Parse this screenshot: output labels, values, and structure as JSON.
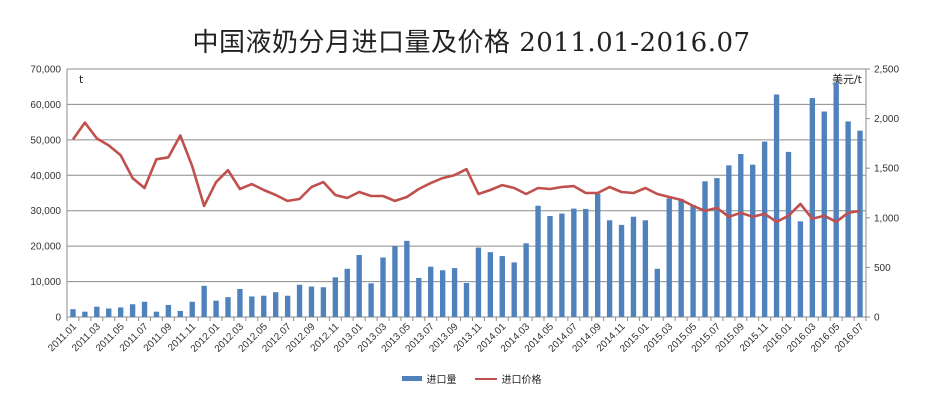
{
  "chart_data": {
    "type": "bar",
    "title": "中国液奶分月进口量及价格 2011.01-2016.07",
    "left_axis": {
      "label": "t",
      "ylim": [
        0,
        70000
      ],
      "ticks": [
        "0",
        "10,000",
        "20,000",
        "30,000",
        "40,000",
        "50,000",
        "60,000",
        "70,000"
      ]
    },
    "right_axis": {
      "label": "美元/t",
      "ylim": [
        0,
        2500
      ],
      "ticks": [
        "0",
        "500",
        "1,000",
        "1,500",
        "2,000",
        "2,500"
      ]
    },
    "categories": [
      "2011.01",
      "2011.02",
      "2011.03",
      "2011.04",
      "2011.05",
      "2011.06",
      "2011.07",
      "2011.08",
      "2011.09",
      "2011.10",
      "2011.11",
      "2011.12",
      "2012.01",
      "2012.02",
      "2012.03",
      "2012.04",
      "2012.05",
      "2012.06",
      "2012.07",
      "2012.08",
      "2012.09",
      "2012.10",
      "2012.11",
      "2012.12",
      "2013.01",
      "2013.02",
      "2013.03",
      "2013.04",
      "2013.05",
      "2013.06",
      "2013.07",
      "2013.08",
      "2013.09",
      "2013.10",
      "2013.11",
      "2013.12",
      "2014.01",
      "2014.02",
      "2014.03",
      "2014.04",
      "2014.05",
      "2014.06",
      "2014.07",
      "2014.08",
      "2014.09",
      "2014.10",
      "2014.11",
      "2014.12",
      "2015.01",
      "2015.02",
      "2015.03",
      "2015.04",
      "2015.05",
      "2015.06",
      "2015.07",
      "2015.08",
      "2015.09",
      "2015.10",
      "2015.11",
      "2015.12",
      "2016.01",
      "2016.02",
      "2016.03",
      "2016.04",
      "2016.05",
      "2016.06",
      "2016.07"
    ],
    "visible_tick_labels": [
      "2011.01",
      "2011.03",
      "2011.05",
      "2011.07",
      "2011.09",
      "2011.11",
      "2012.01",
      "2012.03",
      "2012.05",
      "2012.07",
      "2012.09",
      "2012.11",
      "2013.01",
      "2013.03",
      "2013.05",
      "2013.07",
      "2013.09",
      "2013.11",
      "2014.01",
      "2014.03",
      "2014.05",
      "2014.07",
      "2014.09",
      "2014.11",
      "2015.01",
      "2015.03",
      "2015.05",
      "2015.07",
      "2015.09",
      "2015.11",
      "2016.01",
      "2016.03",
      "2016.05",
      "2016.07"
    ],
    "series": [
      {
        "name": "进口量",
        "type": "bar",
        "axis": "left",
        "color": "#4f81bd",
        "values": [
          2200,
          1500,
          2900,
          2400,
          2700,
          3600,
          4300,
          1500,
          3400,
          1700,
          4300,
          8800,
          4600,
          5600,
          7900,
          5800,
          6000,
          7000,
          6000,
          9100,
          8600,
          8400,
          11200,
          13600,
          17500,
          9500,
          16800,
          20000,
          21500,
          11000,
          14200,
          13200,
          13800,
          9600,
          19600,
          18300,
          17200,
          15400,
          20800,
          31400,
          28500,
          29200,
          30600,
          30500,
          34800,
          27300,
          26000,
          28300,
          27300,
          13600,
          33500,
          33300,
          31600,
          38300,
          39200,
          42800,
          46000,
          43000,
          49500,
          62800,
          46600,
          27000,
          61800,
          58000,
          66200,
          55200,
          52600
        ]
      },
      {
        "name": "进口价格",
        "type": "line",
        "axis": "right",
        "color": "#c0504d",
        "values": [
          1790,
          1960,
          1800,
          1730,
          1630,
          1400,
          1300,
          1590,
          1610,
          1830,
          1520,
          1120,
          1360,
          1480,
          1290,
          1340,
          1280,
          1230,
          1170,
          1190,
          1310,
          1360,
          1230,
          1200,
          1260,
          1220,
          1220,
          1170,
          1210,
          1290,
          1350,
          1400,
          1430,
          1490,
          1240,
          1280,
          1330,
          1300,
          1240,
          1300,
          1290,
          1310,
          1320,
          1250,
          1250,
          1310,
          1260,
          1250,
          1300,
          1240,
          1210,
          1180,
          1120,
          1070,
          1100,
          1010,
          1050,
          1010,
          1040,
          960,
          1020,
          1140,
          990,
          1020,
          960,
          1050,
          1070
        ]
      }
    ],
    "legend": [
      "进口量",
      "进口价格"
    ],
    "legend_position": "bottom",
    "grid": true
  }
}
